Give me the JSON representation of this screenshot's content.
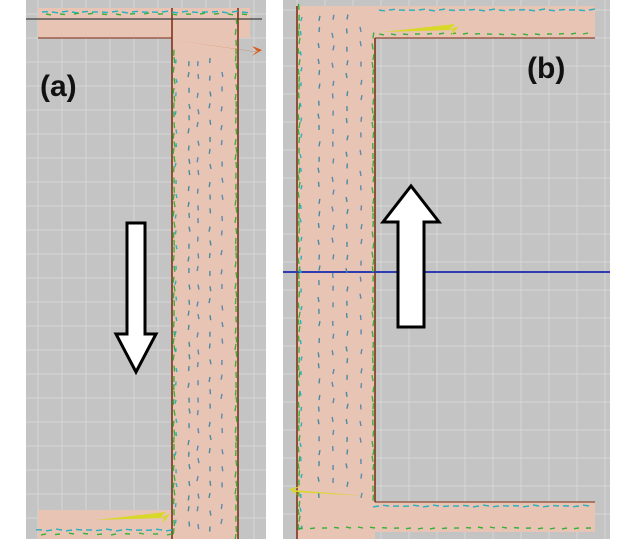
{
  "panels": {
    "a": {
      "label": "(a)",
      "flow_direction": "down"
    },
    "b": {
      "label": "(b)",
      "flow_direction": "up"
    }
  },
  "colors": {
    "background": "#c4c4c4",
    "grid": "#d8d8d8",
    "channel_fill": "#e8c4b4",
    "channel_edge": "#7a2a12",
    "horizontal_line_b": "#2e3cb0",
    "vector_green": "#3ab03a",
    "vector_cyan": "#2ab0c0",
    "vector_yellow": "#d8d828",
    "vector_orange": "#d85a18",
    "arrow_fill": "#ffffff",
    "arrow_stroke": "#000000"
  }
}
